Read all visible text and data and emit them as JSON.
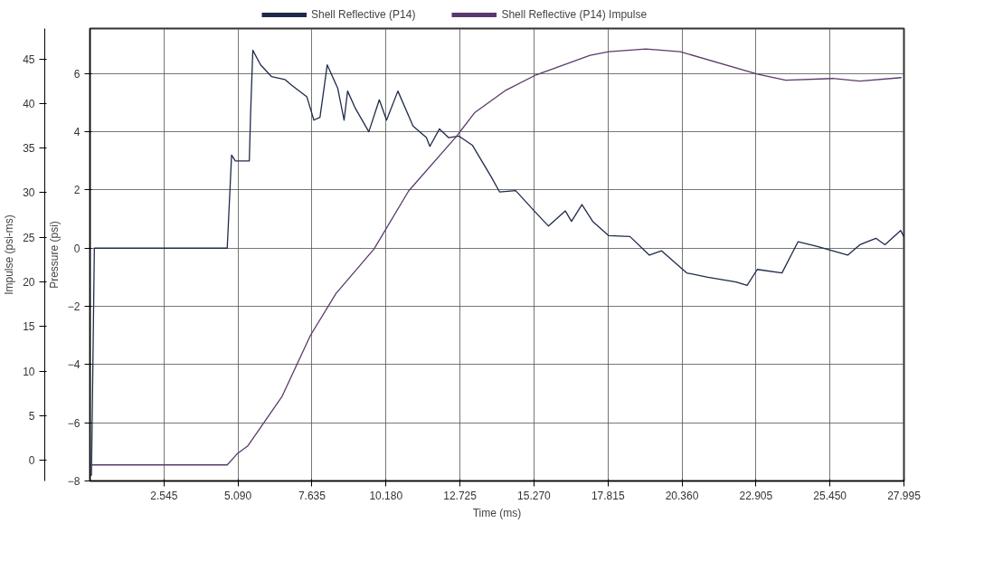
{
  "chart_data": {
    "type": "line",
    "xlabel": "Time (ms)",
    "ylabel": "Pressure (psi)",
    "y2label": "Impulse (psi-ms)",
    "xlim": [
      0,
      27.995
    ],
    "xticks": [
      2.545,
      {
        "value": 5.09,
        "label": "5.090"
      },
      7.635,
      {
        "value": 10.18,
        "label": "10.180"
      },
      12.725,
      {
        "value": 15.27,
        "label": "15.270"
      },
      17.815,
      {
        "value": 20.36,
        "label": "20.360"
      },
      22.905,
      {
        "value": 25.45,
        "label": "25.450"
      },
      27.995
    ],
    "ylim": [
      -8,
      7.55
    ],
    "yticks": [
      -8,
      -6,
      -4,
      -2,
      0,
      2,
      4,
      6
    ],
    "y2lim": [
      -2.3,
      48.4
    ],
    "y2ticks": [
      0,
      5,
      10,
      15,
      20,
      25,
      30,
      35,
      40,
      45
    ],
    "grid": true,
    "legend": "top",
    "line_style": "solid",
    "series": [
      {
        "name": "Shell Reflective (P14)",
        "color": "#1f2a4a",
        "x": [
          0,
          0.05,
          0.1,
          0.15,
          1.0,
          3.0,
          4.72,
          4.87,
          5.0,
          5.48,
          5.52,
          5.6,
          5.87,
          6.24,
          6.7,
          6.94,
          7.46,
          7.7,
          7.91,
          8.16,
          8.52,
          8.74,
          8.86,
          9.13,
          9.59,
          9.95,
          10.2,
          10.59,
          11.11,
          11.57,
          11.69,
          12.02,
          12.33,
          12.69,
          13.15,
          13.79,
          14.09,
          14.64,
          15.28,
          15.77,
          16.35,
          16.56,
          16.92,
          17.29,
          17.84,
          18.57,
          19.24,
          19.66,
          20.52,
          21.25,
          22.22,
          22.6,
          22.95,
          23.8,
          24.35,
          24.99,
          25.54,
          26.06,
          26.48,
          27.03,
          27.34,
          27.88,
          27.99
        ],
        "values": [
          -7.8,
          -7.8,
          -4,
          0,
          0,
          0,
          0,
          3.2,
          3.0,
          3.0,
          4.5,
          6.8,
          6.3,
          5.9,
          5.8,
          5.6,
          5.2,
          4.4,
          4.5,
          6.3,
          5.5,
          4.4,
          5.4,
          4.8,
          4.0,
          5.1,
          4.4,
          5.4,
          4.2,
          3.8,
          3.5,
          4.1,
          3.8,
          3.85,
          3.54,
          2.47,
          1.93,
          1.98,
          1.28,
          0.76,
          1.28,
          0.92,
          1.5,
          0.92,
          0.43,
          0.4,
          -0.24,
          -0.09,
          -0.85,
          -1.0,
          -1.16,
          -1.28,
          -0.73,
          -0.85,
          0.22,
          0.07,
          -0.09,
          -0.24,
          0.12,
          0.34,
          0.12,
          0.61,
          0.4
        ]
      },
      {
        "name": "Shell Reflective (P14) Impulse",
        "color": "#5a3a6a",
        "axis": "y2",
        "x": [
          0,
          4.72,
          5.08,
          5.42,
          6.61,
          7.58,
          8.46,
          9.77,
          10.96,
          12.6,
          13.24,
          14.31,
          15.34,
          17.2,
          17.84,
          19.12,
          20.3,
          22.95,
          23.93,
          25.54,
          26.48,
          27.91
        ],
        "values": [
          -0.5,
          -0.5,
          0.8,
          1.6,
          7.2,
          14.0,
          18.7,
          23.7,
          30.2,
          36.3,
          39.0,
          41.5,
          43.2,
          45.4,
          45.8,
          46.1,
          45.8,
          43.3,
          42.6,
          42.8,
          42.5,
          42.9
        ]
      }
    ]
  }
}
